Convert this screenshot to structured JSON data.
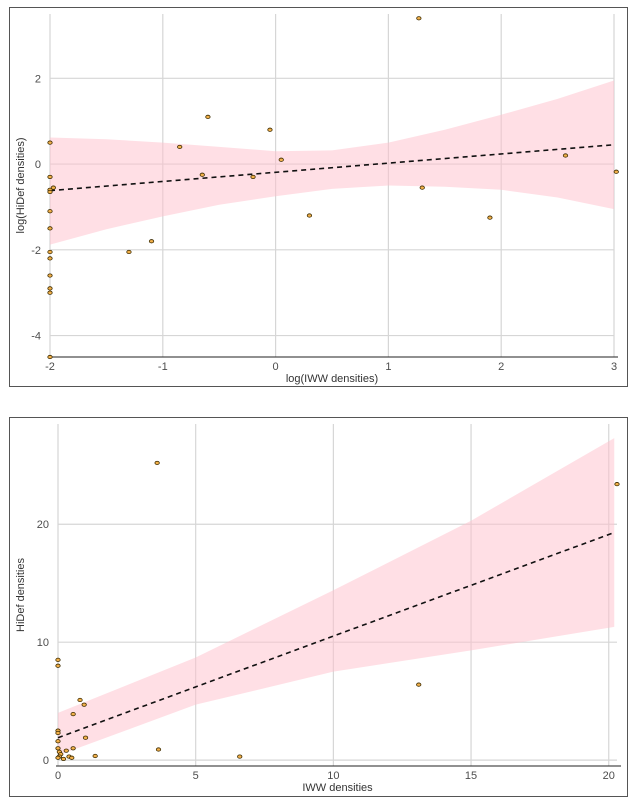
{
  "chart_data": [
    {
      "type": "scatter",
      "xlabel": "log(IWW densities)",
      "ylabel": "log(HiDef densities)",
      "xlim": [
        -2,
        3
      ],
      "ylim": [
        -4.5,
        3.5
      ],
      "xticks": [
        -2,
        -1,
        0,
        1,
        2,
        3
      ],
      "yticks": [
        -4,
        -2,
        0,
        2
      ],
      "grid": true,
      "points": [
        [
          -2.0,
          0.5
        ],
        [
          -2.0,
          -0.3
        ],
        [
          -2.0,
          -0.6
        ],
        [
          -2.0,
          -0.65
        ],
        [
          -1.97,
          -0.55
        ],
        [
          -2.0,
          -1.1
        ],
        [
          -2.0,
          -1.5
        ],
        [
          -2.0,
          -2.05
        ],
        [
          -2.0,
          -2.2
        ],
        [
          -2.0,
          -2.6
        ],
        [
          -2.0,
          -2.9
        ],
        [
          -2.0,
          -3.0
        ],
        [
          -2.0,
          -4.5
        ],
        [
          -1.3,
          -2.05
        ],
        [
          -1.1,
          -1.8
        ],
        [
          -0.85,
          0.4
        ],
        [
          -0.65,
          -0.25
        ],
        [
          -0.6,
          1.1
        ],
        [
          -0.2,
          -0.3
        ],
        [
          -0.05,
          0.8
        ],
        [
          0.05,
          0.1
        ],
        [
          0.3,
          -1.2
        ],
        [
          1.27,
          3.4
        ],
        [
          1.3,
          -0.55
        ],
        [
          1.9,
          -1.25
        ],
        [
          2.57,
          0.2
        ],
        [
          3.02,
          -0.18
        ]
      ],
      "fit_line": [
        [
          -2.0,
          -0.62
        ],
        [
          3.0,
          0.45
        ]
      ],
      "confidence_band": {
        "x": [
          -2.0,
          -1.5,
          -1.0,
          -0.5,
          0.0,
          0.5,
          1.0,
          1.5,
          2.0,
          2.5,
          3.0
        ],
        "upper": [
          0.62,
          0.58,
          0.5,
          0.4,
          0.3,
          0.32,
          0.5,
          0.8,
          1.15,
          1.52,
          1.95
        ],
        "lower": [
          -1.88,
          -1.52,
          -1.22,
          -0.95,
          -0.75,
          -0.58,
          -0.5,
          -0.53,
          -0.6,
          -0.78,
          -1.05
        ]
      }
    },
    {
      "type": "scatter",
      "xlabel": "IWW densities",
      "ylabel": "HiDef densities",
      "xlim": [
        0,
        20.3
      ],
      "ylim": [
        -0.5,
        28.5
      ],
      "xticks": [
        0,
        5,
        10,
        15,
        20
      ],
      "yticks": [
        0,
        10,
        20
      ],
      "grid": true,
      "points": [
        [
          0.0,
          8.5
        ],
        [
          0.0,
          8.0
        ],
        [
          0.0,
          2.5
        ],
        [
          0.0,
          2.3
        ],
        [
          0.0,
          1.6
        ],
        [
          0.0,
          1.0
        ],
        [
          0.05,
          0.7
        ],
        [
          0.1,
          0.5
        ],
        [
          0.05,
          0.3
        ],
        [
          0.0,
          0.2
        ],
        [
          0.2,
          0.1
        ],
        [
          0.3,
          0.8
        ],
        [
          0.4,
          0.3
        ],
        [
          0.5,
          0.2
        ],
        [
          0.55,
          1.0
        ],
        [
          0.55,
          3.9
        ],
        [
          0.8,
          5.1
        ],
        [
          0.95,
          4.7
        ],
        [
          1.0,
          1.9
        ],
        [
          1.35,
          0.35
        ],
        [
          3.6,
          25.2
        ],
        [
          3.65,
          0.9
        ],
        [
          6.6,
          0.3
        ],
        [
          13.1,
          6.4
        ],
        [
          20.3,
          23.4
        ]
      ],
      "fit_line": [
        [
          0.0,
          1.9
        ],
        [
          20.2,
          19.3
        ]
      ],
      "confidence_band": {
        "x": [
          0.0,
          5.0,
          10.0,
          15.0,
          20.2
        ],
        "upper": [
          4.0,
          8.7,
          14.4,
          20.3,
          27.3
        ],
        "lower": [
          0.4,
          4.7,
          7.5,
          9.3,
          11.3
        ]
      }
    }
  ]
}
